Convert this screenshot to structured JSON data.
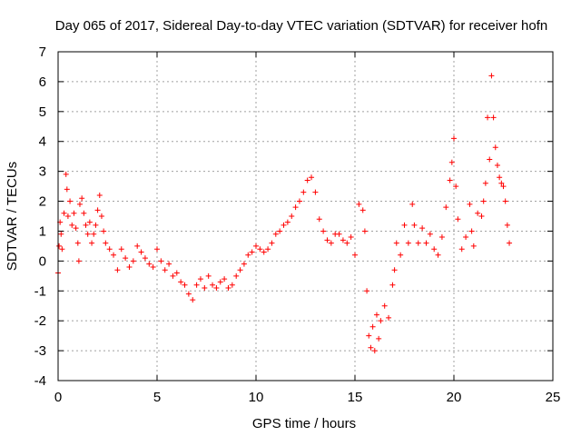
{
  "chart_data": {
    "type": "scatter",
    "title": "Day 065 of 2017, Sidereal Day-to-day VTEC variation (SDTVAR) for receiver hofn",
    "xlabel": "GPS time / hours",
    "ylabel": "SDTVAR / TECUs",
    "xlim": [
      0,
      25
    ],
    "ylim": [
      -4,
      7
    ],
    "xticks": [
      0,
      5,
      10,
      15,
      20,
      25
    ],
    "yticks": [
      -4,
      -3,
      -2,
      -1,
      0,
      1,
      2,
      3,
      4,
      5,
      6,
      7
    ],
    "grid": true,
    "marker": "+",
    "series_color": "#ff0000",
    "series": [
      {
        "name": "SDTVAR",
        "points": [
          [
            0.0,
            -0.4
          ],
          [
            0.05,
            0.5
          ],
          [
            0.1,
            1.3
          ],
          [
            0.15,
            0.9
          ],
          [
            0.2,
            0.4
          ],
          [
            0.3,
            1.6
          ],
          [
            0.4,
            2.9
          ],
          [
            0.45,
            2.4
          ],
          [
            0.5,
            1.5
          ],
          [
            0.6,
            2.0
          ],
          [
            0.7,
            1.2
          ],
          [
            0.8,
            1.6
          ],
          [
            0.9,
            1.1
          ],
          [
            1.0,
            0.6
          ],
          [
            1.05,
            0.0
          ],
          [
            1.1,
            1.9
          ],
          [
            1.2,
            2.1
          ],
          [
            1.3,
            1.6
          ],
          [
            1.4,
            1.2
          ],
          [
            1.5,
            0.9
          ],
          [
            1.6,
            1.3
          ],
          [
            1.7,
            0.6
          ],
          [
            1.8,
            0.9
          ],
          [
            1.9,
            1.2
          ],
          [
            2.0,
            1.7
          ],
          [
            2.1,
            2.2
          ],
          [
            2.2,
            1.5
          ],
          [
            2.3,
            1.0
          ],
          [
            2.4,
            0.6
          ],
          [
            2.6,
            0.4
          ],
          [
            2.8,
            0.2
          ],
          [
            3.0,
            -0.3
          ],
          [
            3.2,
            0.4
          ],
          [
            3.4,
            0.1
          ],
          [
            3.6,
            -0.2
          ],
          [
            3.8,
            0.0
          ],
          [
            4.0,
            0.5
          ],
          [
            4.2,
            0.3
          ],
          [
            4.4,
            0.1
          ],
          [
            4.6,
            -0.1
          ],
          [
            4.8,
            -0.2
          ],
          [
            5.0,
            0.4
          ],
          [
            5.2,
            0.0
          ],
          [
            5.4,
            -0.3
          ],
          [
            5.6,
            -0.1
          ],
          [
            5.8,
            -0.5
          ],
          [
            6.0,
            -0.4
          ],
          [
            6.2,
            -0.7
          ],
          [
            6.4,
            -0.8
          ],
          [
            6.6,
            -1.1
          ],
          [
            6.8,
            -1.3
          ],
          [
            7.0,
            -0.8
          ],
          [
            7.2,
            -0.6
          ],
          [
            7.4,
            -0.9
          ],
          [
            7.6,
            -0.5
          ],
          [
            7.8,
            -0.8
          ],
          [
            8.0,
            -0.9
          ],
          [
            8.2,
            -0.7
          ],
          [
            8.4,
            -0.6
          ],
          [
            8.6,
            -0.9
          ],
          [
            8.8,
            -0.8
          ],
          [
            9.0,
            -0.5
          ],
          [
            9.2,
            -0.3
          ],
          [
            9.4,
            -0.1
          ],
          [
            9.6,
            0.2
          ],
          [
            9.8,
            0.3
          ],
          [
            10.0,
            0.5
          ],
          [
            10.2,
            0.4
          ],
          [
            10.4,
            0.3
          ],
          [
            10.6,
            0.4
          ],
          [
            10.8,
            0.6
          ],
          [
            11.0,
            0.9
          ],
          [
            11.2,
            1.0
          ],
          [
            11.4,
            1.2
          ],
          [
            11.6,
            1.3
          ],
          [
            11.8,
            1.5
          ],
          [
            12.0,
            1.8
          ],
          [
            12.2,
            2.0
          ],
          [
            12.4,
            2.3
          ],
          [
            12.6,
            2.7
          ],
          [
            12.8,
            2.8
          ],
          [
            13.0,
            2.3
          ],
          [
            13.2,
            1.4
          ],
          [
            13.4,
            1.0
          ],
          [
            13.6,
            0.7
          ],
          [
            13.8,
            0.6
          ],
          [
            14.0,
            0.9
          ],
          [
            14.2,
            0.9
          ],
          [
            14.4,
            0.7
          ],
          [
            14.6,
            0.6
          ],
          [
            14.8,
            0.8
          ],
          [
            15.0,
            0.2
          ],
          [
            15.2,
            1.9
          ],
          [
            15.4,
            1.7
          ],
          [
            15.5,
            1.0
          ],
          [
            15.6,
            -1.0
          ],
          [
            15.7,
            -2.5
          ],
          [
            15.8,
            -2.9
          ],
          [
            15.9,
            -2.2
          ],
          [
            16.0,
            -3.0
          ],
          [
            16.1,
            -1.8
          ],
          [
            16.2,
            -2.6
          ],
          [
            16.3,
            -2.0
          ],
          [
            16.5,
            -1.5
          ],
          [
            16.7,
            -1.9
          ],
          [
            16.9,
            -0.8
          ],
          [
            17.0,
            -0.3
          ],
          [
            17.1,
            0.6
          ],
          [
            17.3,
            0.2
          ],
          [
            17.5,
            1.2
          ],
          [
            17.7,
            0.6
          ],
          [
            17.9,
            1.9
          ],
          [
            18.0,
            1.2
          ],
          [
            18.2,
            0.6
          ],
          [
            18.4,
            1.1
          ],
          [
            18.6,
            0.6
          ],
          [
            18.8,
            0.9
          ],
          [
            19.0,
            0.4
          ],
          [
            19.2,
            0.2
          ],
          [
            19.4,
            0.8
          ],
          [
            19.6,
            1.8
          ],
          [
            19.8,
            2.7
          ],
          [
            19.9,
            3.3
          ],
          [
            20.0,
            4.1
          ],
          [
            20.1,
            2.5
          ],
          [
            20.2,
            1.4
          ],
          [
            20.4,
            0.4
          ],
          [
            20.6,
            0.8
          ],
          [
            20.8,
            1.9
          ],
          [
            20.9,
            1.0
          ],
          [
            21.0,
            0.5
          ],
          [
            21.2,
            1.6
          ],
          [
            21.4,
            1.5
          ],
          [
            21.5,
            2.0
          ],
          [
            21.6,
            2.6
          ],
          [
            21.7,
            4.8
          ],
          [
            21.8,
            3.4
          ],
          [
            21.9,
            6.2
          ],
          [
            22.0,
            4.8
          ],
          [
            22.1,
            3.8
          ],
          [
            22.2,
            3.2
          ],
          [
            22.3,
            2.8
          ],
          [
            22.4,
            2.6
          ],
          [
            22.5,
            2.5
          ],
          [
            22.6,
            2.0
          ],
          [
            22.7,
            1.2
          ],
          [
            22.8,
            0.6
          ]
        ]
      }
    ]
  }
}
